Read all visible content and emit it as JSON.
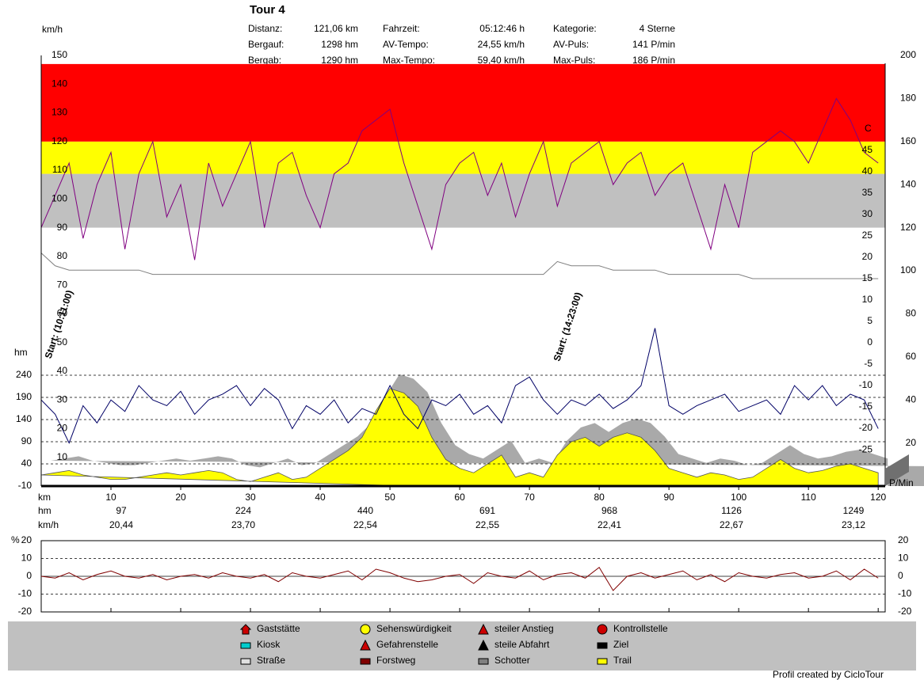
{
  "header": {
    "title": "Tour 4",
    "stats": [
      [
        "Distanz:",
        "121,06 km"
      ],
      [
        "Bergauf:",
        "1298 hm"
      ],
      [
        "Bergab:",
        "1290 hm"
      ],
      [
        "Fahrzeit:",
        "05:12:46 h"
      ],
      [
        "AV-Tempo:",
        "24,55 km/h"
      ],
      [
        "Max-Tempo:",
        "59,40 km/h"
      ],
      [
        "Kategorie:",
        "4 Sterne"
      ],
      [
        "AV-Puls:",
        "141 P/min"
      ],
      [
        "Max-Puls:",
        "186 P/min"
      ]
    ]
  },
  "chart_data": [
    {
      "type": "line",
      "x": [
        0,
        2,
        4,
        6,
        8,
        10,
        12,
        14,
        16,
        18,
        20,
        22,
        24,
        26,
        28,
        30,
        32,
        34,
        36,
        38,
        40,
        42,
        44,
        46,
        48,
        50,
        52,
        54,
        56,
        58,
        60,
        62,
        64,
        66,
        68,
        70,
        72,
        74,
        76,
        78,
        80,
        82,
        84,
        86,
        88,
        90,
        92,
        94,
        96,
        98,
        100,
        102,
        104,
        106,
        108,
        110,
        112,
        114,
        116,
        118,
        120
      ],
      "xlabel": "km",
      "xlim": [
        0,
        121
      ],
      "xticks": [
        10,
        20,
        30,
        40,
        50,
        60,
        70,
        80,
        90,
        100,
        110,
        120
      ],
      "ylabel": "km/h",
      "ylim": [
        0,
        150
      ],
      "yticks": [
        10,
        20,
        30,
        40,
        50,
        60,
        70,
        80,
        90,
        100,
        110,
        120,
        130,
        140,
        150
      ],
      "y2label": "P/Min",
      "y2lim": [
        0,
        200
      ],
      "y2ticks": [
        20,
        40,
        60,
        80,
        100,
        120,
        140,
        160,
        180,
        200
      ],
      "y3label": "C",
      "y3lim": [
        -33.5,
        67.2
      ],
      "y3ticks": [
        -25,
        -20,
        -15,
        -10,
        -5,
        0,
        5,
        10,
        15,
        20,
        25,
        30,
        35,
        40,
        45
      ],
      "y4label": "hm",
      "y4lim": [
        -10,
        961.4
      ],
      "y4ticks": [
        -10,
        40,
        90,
        140,
        190,
        240
      ],
      "zones": [
        {
          "axis": "y2",
          "from": 120,
          "to": 145,
          "color": "#c0c0c0"
        },
        {
          "axis": "y2",
          "from": 145,
          "to": 160,
          "color": "#ffff00"
        },
        {
          "axis": "y2",
          "from": 160,
          "to": 196,
          "color": "#ff0000"
        }
      ],
      "annotations": [
        "Start: (10:11:00)",
        "Start: (14:23:00)"
      ],
      "series": [
        {
          "axis": "y3",
          "color": "#808080",
          "values": [
            21,
            18,
            17,
            17,
            17,
            17,
            17,
            17,
            16,
            16,
            16,
            16,
            16,
            16,
            16,
            16,
            16,
            16,
            16,
            16,
            16,
            16,
            16,
            16,
            16,
            16,
            16,
            16,
            16,
            16,
            16,
            16,
            16,
            16,
            16,
            16,
            16,
            19,
            18,
            18,
            18,
            17,
            17,
            17,
            17,
            16,
            16,
            16,
            16,
            16,
            16,
            15,
            15,
            15,
            15,
            15,
            15,
            15,
            15,
            15,
            15
          ]
        },
        {
          "axis": "y2",
          "color": "#800080",
          "values": [
            120,
            135,
            150,
            115,
            140,
            155,
            110,
            145,
            160,
            125,
            140,
            105,
            150,
            130,
            145,
            160,
            120,
            150,
            155,
            135,
            120,
            145,
            150,
            165,
            170,
            175,
            150,
            130,
            110,
            140,
            150,
            155,
            135,
            150,
            125,
            145,
            160,
            130,
            150,
            155,
            160,
            140,
            150,
            155,
            135,
            145,
            150,
            130,
            110,
            140,
            120,
            155,
            160,
            165,
            160,
            150,
            165,
            180,
            170,
            155,
            150
          ]
        },
        {
          "axis": "y4",
          "color": "#ffff00",
          "shadow": "#a9a9a9",
          "values": [
            15,
            20,
            25,
            15,
            10,
            5,
            5,
            10,
            15,
            20,
            15,
            20,
            25,
            20,
            5,
            0,
            10,
            20,
            5,
            10,
            30,
            50,
            70,
            100,
            160,
            210,
            200,
            170,
            100,
            50,
            30,
            20,
            40,
            60,
            10,
            20,
            10,
            60,
            90,
            100,
            80,
            100,
            110,
            100,
            70,
            30,
            20,
            10,
            20,
            15,
            5,
            10,
            30,
            50,
            30,
            20,
            25,
            35,
            40,
            30,
            20
          ]
        },
        {
          "axis": "y",
          "color": "#000066",
          "values": [
            30,
            25,
            15,
            28,
            22,
            30,
            26,
            35,
            30,
            28,
            33,
            25,
            30,
            32,
            35,
            28,
            34,
            30,
            20,
            28,
            25,
            30,
            22,
            27,
            25,
            35,
            25,
            20,
            30,
            28,
            32,
            25,
            28,
            22,
            35,
            38,
            30,
            25,
            30,
            28,
            32,
            27,
            30,
            35,
            55,
            28,
            25,
            28,
            30,
            32,
            26,
            28,
            30,
            25,
            35,
            30,
            35,
            28,
            32,
            30,
            20
          ]
        }
      ]
    },
    {
      "type": "line",
      "x": [
        0,
        2,
        4,
        6,
        8,
        10,
        12,
        14,
        16,
        18,
        20,
        22,
        24,
        26,
        28,
        30,
        32,
        34,
        36,
        38,
        40,
        42,
        44,
        46,
        48,
        50,
        52,
        54,
        56,
        58,
        60,
        62,
        64,
        66,
        68,
        70,
        72,
        74,
        76,
        78,
        80,
        82,
        84,
        86,
        88,
        90,
        92,
        94,
        96,
        98,
        100,
        102,
        104,
        106,
        108,
        110,
        112,
        114,
        116,
        118,
        120
      ],
      "xlim": [
        0,
        121
      ],
      "xticks": [
        10,
        20,
        30,
        40,
        50,
        60,
        70,
        80,
        90,
        100,
        110,
        120
      ],
      "ylabel": "%",
      "ylim": [
        -20,
        20
      ],
      "yticks": [
        -20,
        -10,
        0,
        10,
        20
      ],
      "color": "#800000",
      "values": [
        0,
        -1,
        2,
        -2,
        1,
        3,
        0,
        -1,
        1,
        -2,
        0,
        1,
        -1,
        2,
        0,
        -1,
        1,
        -3,
        2,
        0,
        -1,
        1,
        3,
        -2,
        4,
        2,
        -1,
        -3,
        -2,
        0,
        1,
        -4,
        2,
        0,
        -1,
        3,
        -2,
        1,
        2,
        -1,
        5,
        -8,
        0,
        2,
        -1,
        1,
        3,
        -2,
        1,
        -3,
        2,
        0,
        -1,
        1,
        2,
        -1,
        0,
        3,
        -2,
        4,
        -1
      ]
    }
  ],
  "summary": {
    "hm_label": "hm",
    "hm": [
      97,
      224,
      440,
      691,
      968,
      1126,
      1249
    ],
    "kmh_label": "km/h",
    "kmh": [
      "20,44",
      "23,70",
      "22,54",
      "22,55",
      "22,41",
      "22,67",
      "23,12"
    ]
  },
  "legend": [
    "Gaststätte",
    "Kiosk",
    "Straße",
    "Sehenswürdigkeit",
    "Gefahrenstelle",
    "Forstweg",
    "steiler Anstieg",
    "steile Abfahrt",
    "Schotter",
    "Kontrollstelle",
    "Ziel",
    "Trail"
  ],
  "footer": "Profil created by CicloTour"
}
